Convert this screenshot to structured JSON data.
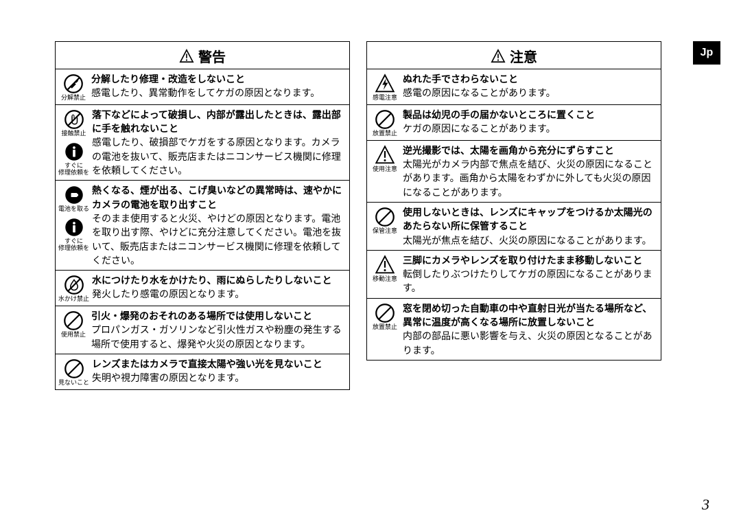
{
  "language_tab": "Jp",
  "page_number": "3",
  "warning": {
    "header": "警告",
    "rows": [
      {
        "icons": [
          {
            "type": "disassemble",
            "label": "分解禁止"
          }
        ],
        "title": "分解したり修理・改造をしないこと",
        "body": "感電したり、異常動作をしてケガの原因となります。"
      },
      {
        "icons": [
          {
            "type": "notouch",
            "label": "接触禁止"
          },
          {
            "type": "action",
            "label": "すぐに\n修理依頼を"
          }
        ],
        "title": "落下などによって破損し、内部が露出したときは、露出部に手を触れないこと",
        "body": "感電したり、破損部でケガをする原因となります。カメラの電池を抜いて、販売店またはニコンサービス機関に修理を依頼してください。"
      },
      {
        "icons": [
          {
            "type": "battery",
            "label": "電池を取る"
          },
          {
            "type": "action",
            "label": "すぐに\n修理依頼を"
          }
        ],
        "title": "熱くなる、煙が出る、こげ臭いなどの異常時は、速やかにカメラの電池を取り出すこと",
        "body": "そのまま使用すると火災、やけどの原因となります。電池を取り出す際、やけどに充分注意してください。電池を抜いて、販売店またはニコンサービス機関に修理を依頼してください。"
      },
      {
        "icons": [
          {
            "type": "nowater",
            "label": "水かけ禁止"
          }
        ],
        "title": "水につけたり水をかけたり、雨にぬらしたりしないこと",
        "body": "発火したり感電の原因となります。"
      },
      {
        "icons": [
          {
            "type": "prohibit",
            "label": "使用禁止"
          }
        ],
        "title": "引火・爆発のおそれのある場所では使用しないこと",
        "body": "プロパンガス・ガソリンなど引火性ガスや粉塵の発生する場所で使用すると、爆発や火災の原因となります。"
      },
      {
        "icons": [
          {
            "type": "prohibit",
            "label": "見ないこと"
          }
        ],
        "title": "レンズまたはカメラで直接太陽や強い光を見ないこと",
        "body": "失明や視力障害の原因となります。"
      }
    ]
  },
  "caution": {
    "header": "注意",
    "rows": [
      {
        "icons": [
          {
            "type": "shock",
            "label": "感電注意"
          }
        ],
        "title": "ぬれた手でさわらないこと",
        "body": "感電の原因になることがあります。"
      },
      {
        "icons": [
          {
            "type": "prohibit",
            "label": "放置禁止"
          }
        ],
        "title": "製品は幼児の手の届かないところに置くこと",
        "body": "ケガの原因になることがあります。"
      },
      {
        "icons": [
          {
            "type": "tri",
            "label": "使用注意"
          }
        ],
        "title": "逆光撮影では、太陽を画角から充分にずらすこと",
        "body": "太陽光がカメラ内部で焦点を結び、火災の原因になることがあります。画角から太陽をわずかに外しても火災の原因になることがあります。"
      },
      {
        "icons": [
          {
            "type": "prohibit",
            "label": "保管注意"
          }
        ],
        "title": "使用しないときは、レンズにキャップをつけるか太陽光のあたらない所に保管すること",
        "body": "太陽光が焦点を結び、火災の原因になることがあります。"
      },
      {
        "icons": [
          {
            "type": "tri",
            "label": "移動注意"
          }
        ],
        "title": "三脚にカメラやレンズを取り付けたまま移動しないこと",
        "body": "転倒したりぶつけたりしてケガの原因になることがあります。"
      },
      {
        "icons": [
          {
            "type": "prohibit",
            "label": "放置禁止"
          }
        ],
        "title": "窓を閉め切った自動車の中や直射日光が当たる場所など、異常に温度が高くなる場所に放置しないこと",
        "body": "内部の部品に悪い影響を与え、火災の原因となることがあります。"
      }
    ]
  }
}
